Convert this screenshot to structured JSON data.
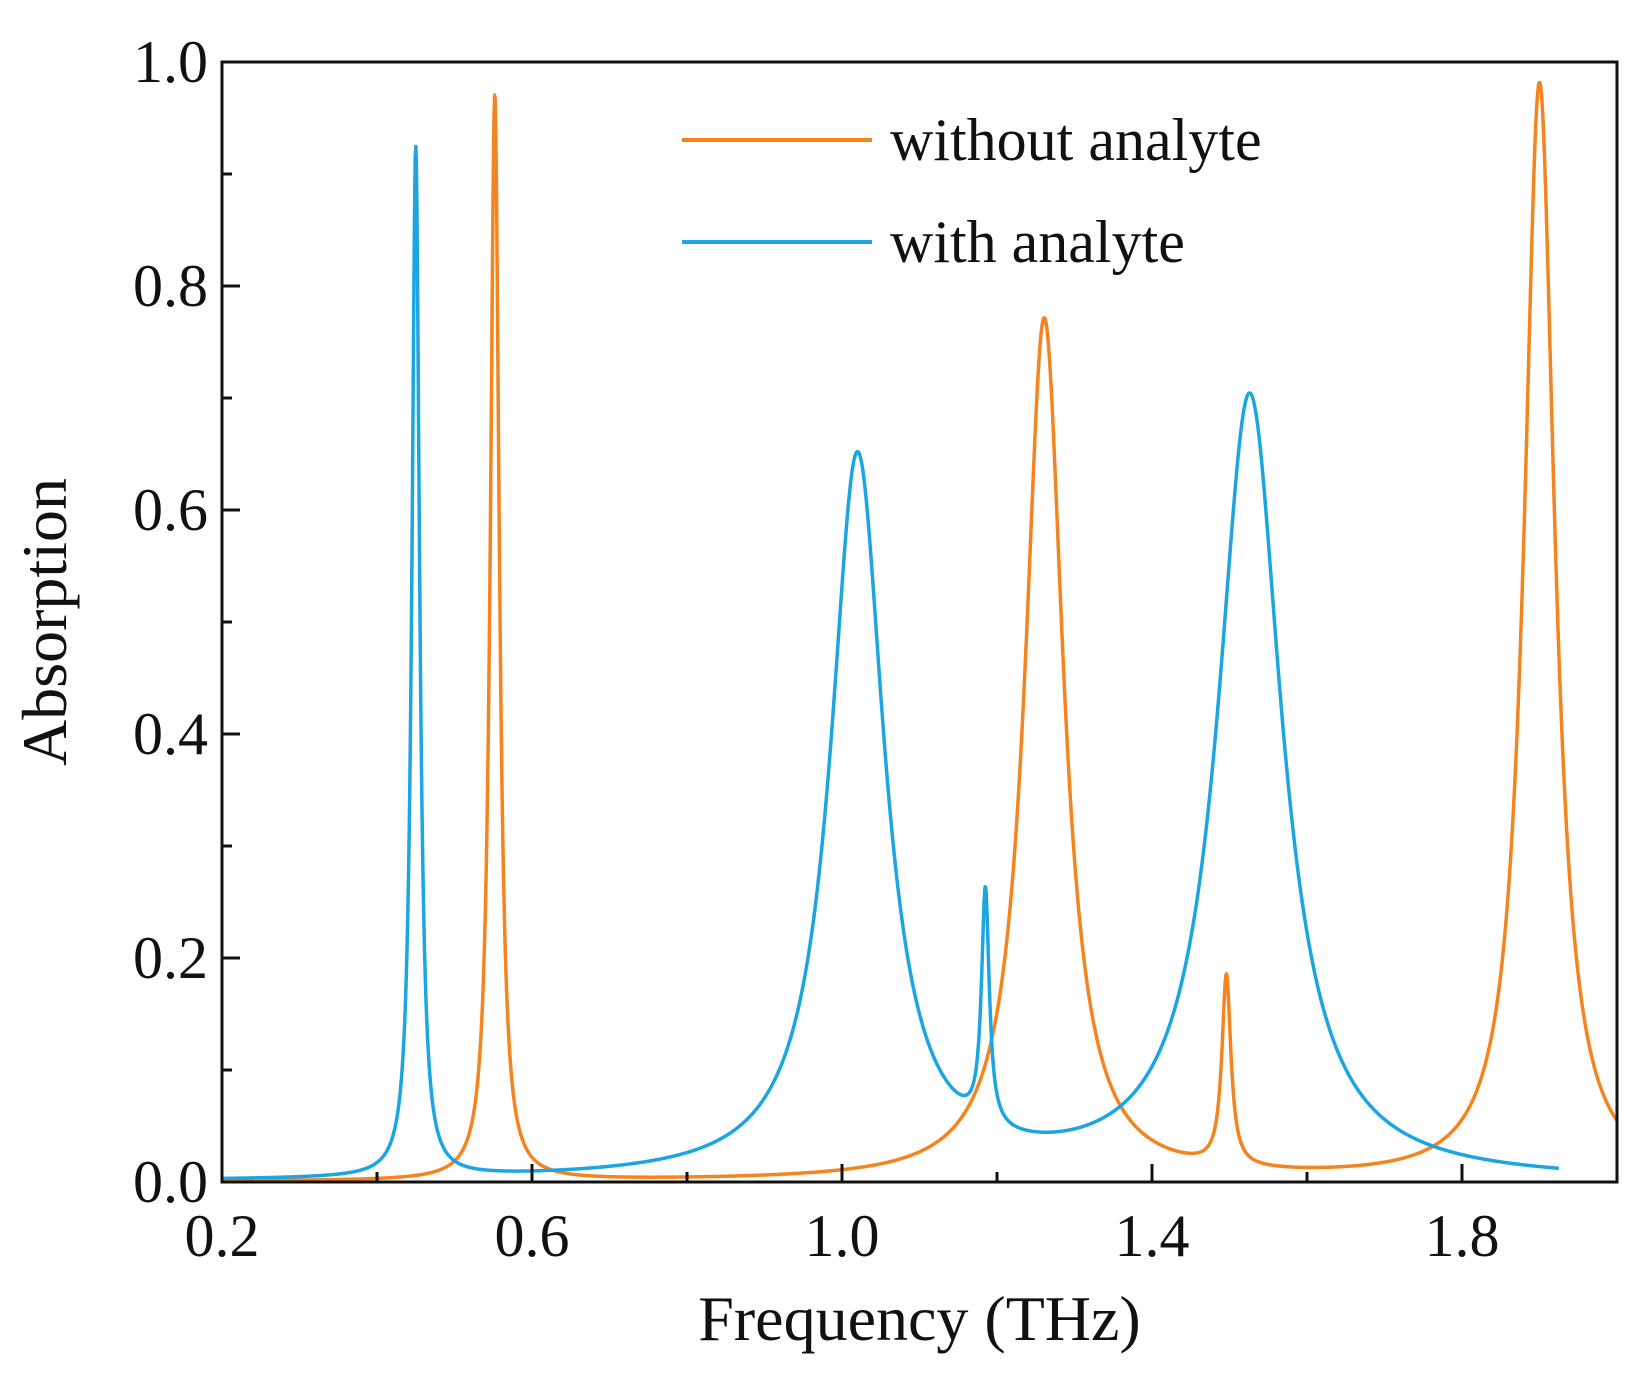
{
  "chart_data": {
    "type": "line",
    "title": "",
    "xlabel": "Frequency (THz)",
    "ylabel": "Absorption",
    "xlim": [
      0.2,
      2.0
    ],
    "ylim": [
      0.0,
      1.0
    ],
    "xticks": [
      0.2,
      0.6,
      1.0,
      1.4,
      1.8
    ],
    "xtick_labels": [
      "0.2",
      "0.6",
      "1.0",
      "1.4",
      "1.8"
    ],
    "xticks_minor": [
      0.4,
      0.8,
      1.2,
      1.6
    ],
    "yticks": [
      0.0,
      0.2,
      0.4,
      0.6,
      0.8,
      1.0
    ],
    "ytick_labels": [
      "0.0",
      "0.2",
      "0.4",
      "0.6",
      "0.8",
      "1.0"
    ],
    "yticks_minor": [
      0.1,
      0.3,
      0.5,
      0.7,
      0.9
    ],
    "grid": false,
    "legend_position": "top-right",
    "series": [
      {
        "name": "without analyte",
        "color": "#F5841F",
        "x_range": [
          0.2,
          2.0
        ],
        "baseline": 0.0,
        "peaks": [
          {
            "x": 0.552,
            "y": 0.97,
            "hwhm": 0.007
          },
          {
            "x": 1.261,
            "y": 0.77,
            "hwhm": 0.03
          },
          {
            "x": 1.496,
            "y": 0.17,
            "hwhm": 0.007
          },
          {
            "x": 1.9,
            "y": 0.98,
            "hwhm": 0.024
          }
        ]
      },
      {
        "name": "with analyte",
        "color": "#1BA5E1",
        "x_range": [
          0.2,
          1.925
        ],
        "baseline": 0.0,
        "peaks": [
          {
            "x": 0.45,
            "y": 0.92,
            "hwhm": 0.006
          },
          {
            "x": 1.02,
            "y": 0.645,
            "hwhm": 0.042
          },
          {
            "x": 1.185,
            "y": 0.21,
            "hwhm": 0.006
          },
          {
            "x": 1.526,
            "y": 0.7,
            "hwhm": 0.05
          }
        ]
      }
    ]
  }
}
